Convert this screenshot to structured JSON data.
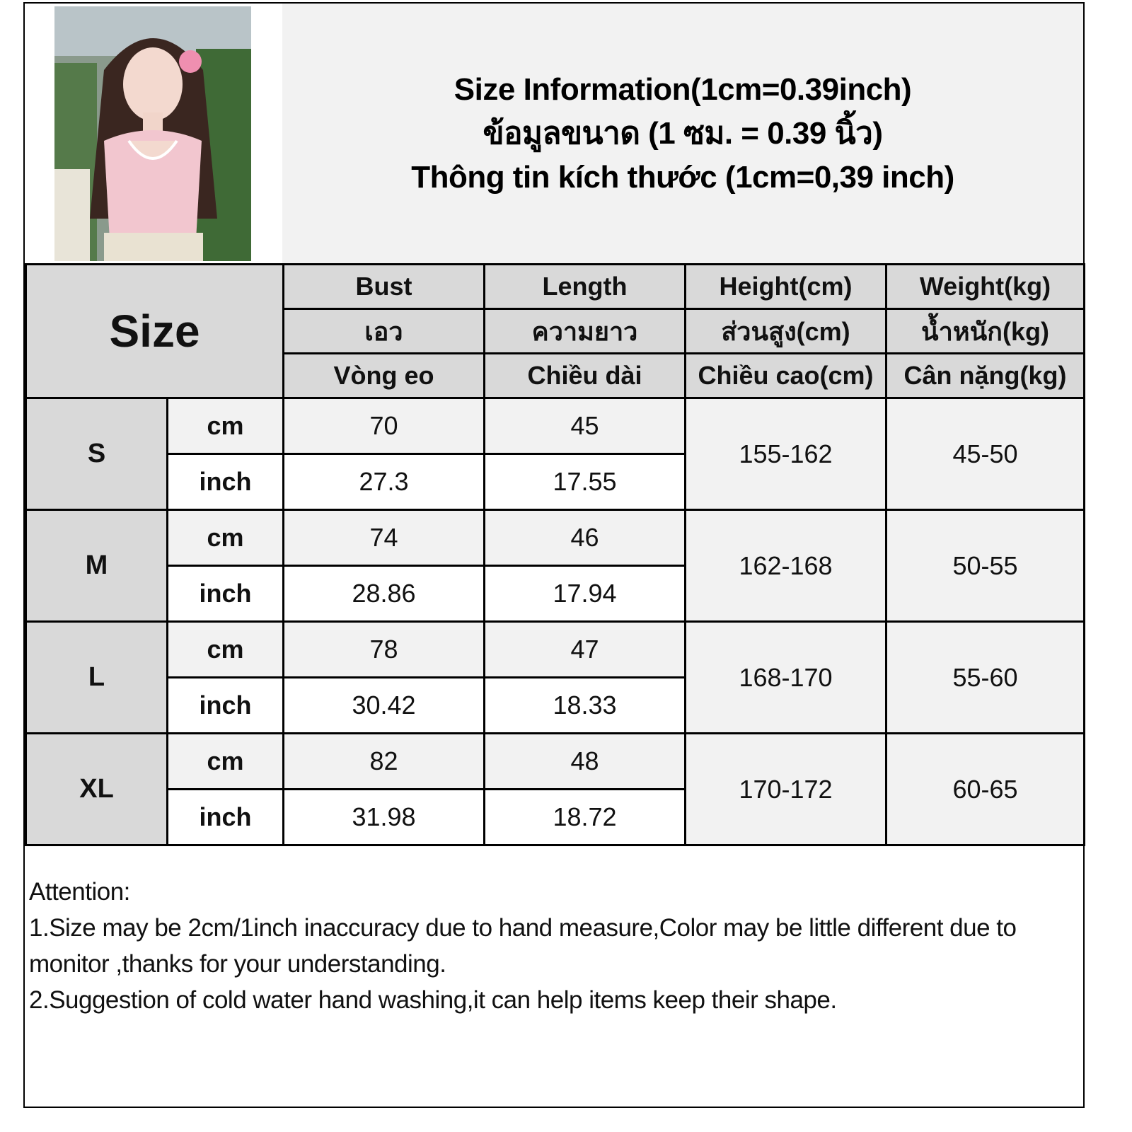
{
  "title": {
    "line1": "Size Information(1cm=0.39inch)",
    "line2": "ข้อมูลขนาด (1 ซม. = 0.39 นิ้ว)",
    "line3": "Thông tin kích thước (1cm=0,39 inch)"
  },
  "header": {
    "size_label": "Size",
    "columns": [
      {
        "en": "Bust",
        "th": "เอว",
        "vi": "Vòng eo"
      },
      {
        "en": "Length",
        "th": "ความยาว",
        "vi": "Chiều dài"
      },
      {
        "en": "Height(cm)",
        "th": "ส่วนสูง(cm)",
        "vi": "Chiều cao(cm)"
      },
      {
        "en": "Weight(kg)",
        "th": "น้ำหนัก(kg)",
        "vi": "Cân nặng(kg)"
      }
    ]
  },
  "units": {
    "cm": "cm",
    "inch": "inch"
  },
  "rows": [
    {
      "size": "S",
      "cm": {
        "bust": "70",
        "length": "45"
      },
      "inch": {
        "bust": "27.3",
        "length": "17.55"
      },
      "height": "155-162",
      "weight": "45-50"
    },
    {
      "size": "M",
      "cm": {
        "bust": "74",
        "length": "46"
      },
      "inch": {
        "bust": "28.86",
        "length": "17.94"
      },
      "height": "162-168",
      "weight": "50-55"
    },
    {
      "size": "L",
      "cm": {
        "bust": "78",
        "length": "47"
      },
      "inch": {
        "bust": "30.42",
        "length": "18.33"
      },
      "height": "168-170",
      "weight": "55-60"
    },
    {
      "size": "XL",
      "cm": {
        "bust": "82",
        "length": "48"
      },
      "inch": {
        "bust": "31.98",
        "length": "18.72"
      },
      "height": "170-172",
      "weight": "60-65"
    }
  ],
  "notes": {
    "heading": "Attention:",
    "line1": "1.Size may be 2cm/1inch inaccuracy due to hand measure,Color may be little different due to monitor ,thanks for your understanding.",
    "line2": "2.Suggestion of cold water hand washing,it can help items keep their shape."
  },
  "colors": {
    "header_bg": "#d9d9d9",
    "light_bg": "#f2f2f2",
    "border": "#000000"
  }
}
